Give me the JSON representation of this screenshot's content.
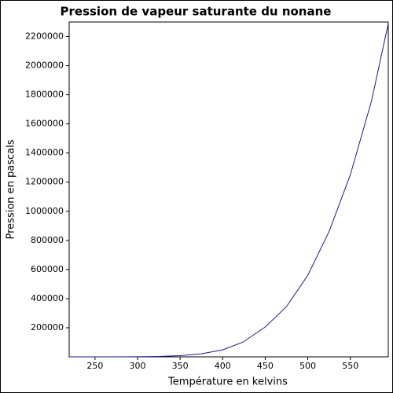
{
  "chart_data": {
    "type": "line",
    "title": "Pression de vapeur saturante du nonane",
    "x_label": "Température en kelvins",
    "y_label": "Pression en pascals",
    "x": [
      219.66,
      250,
      275,
      300,
      325,
      350,
      375,
      400,
      424,
      450,
      475,
      500,
      525,
      550,
      575,
      594.6
    ],
    "series": [
      {
        "name": "nonane",
        "color": "#1a1a8c",
        "values": [
          0,
          20,
          120,
          600,
          2500,
          8000,
          21000,
          48000,
          101325,
          205000,
          345000,
          560000,
          860000,
          1250000,
          1760000,
          2290000
        ]
      }
    ],
    "xlim": [
      219.66,
      594.6
    ],
    "ylim": [
      0,
      2300000
    ],
    "xticks": [
      250,
      300,
      350,
      400,
      450,
      500,
      550
    ],
    "yticks": [
      200000,
      400000,
      600000,
      800000,
      1000000,
      1200000,
      1400000,
      1600000,
      1800000,
      2000000,
      2200000
    ],
    "grid": false
  }
}
